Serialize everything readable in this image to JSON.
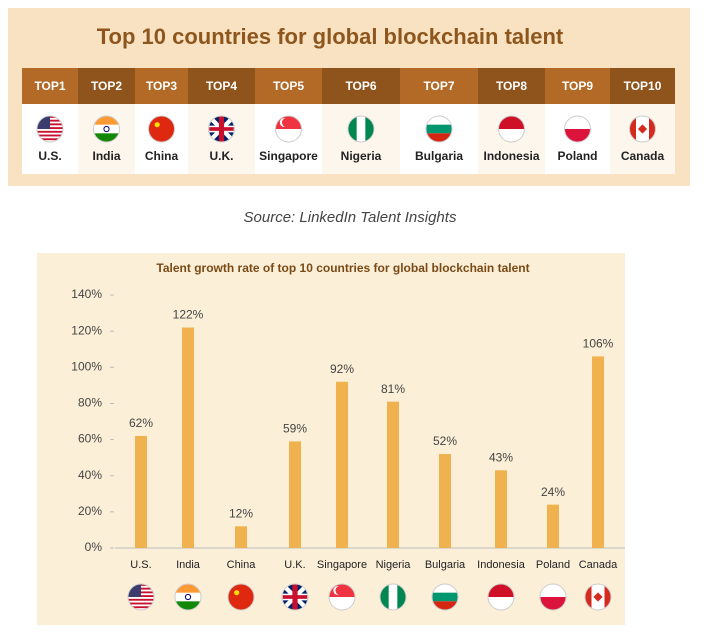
{
  "ranking": {
    "title": "Top 10 countries for global blockchain talent",
    "ranks": [
      "TOP1",
      "TOP2",
      "TOP3",
      "TOP4",
      "TOP5",
      "TOP6",
      "TOP7",
      "TOP8",
      "TOP9",
      "TOP10"
    ],
    "countries": [
      "U.S.",
      "India",
      "China",
      "U.K.",
      "Singapore",
      "Nigeria",
      "Bulgaria",
      "Indonesia",
      "Poland",
      "Canada"
    ]
  },
  "source": "Source: LinkedIn Talent Insights",
  "chart_data": {
    "type": "bar",
    "title": "Talent growth rate of top 10 countries for global blockchain talent",
    "categories": [
      "U.S.",
      "India",
      "China",
      "U.K.",
      "Singapore",
      "Nigeria",
      "Bulgaria",
      "Indonesia",
      "Poland",
      "Canada"
    ],
    "values": [
      62,
      122,
      12,
      59,
      92,
      81,
      52,
      43,
      24,
      106
    ],
    "value_labels": [
      "62%",
      "122%",
      "12%",
      "59%",
      "92%",
      "81%",
      "52%",
      "43%",
      "24%",
      "106%"
    ],
    "color": "#f0b24e",
    "ylim": [
      0,
      140
    ],
    "yticks": [
      {
        "value": 0,
        "label": "0%"
      },
      {
        "value": 20,
        "label": "20%"
      },
      {
        "value": 40,
        "label": "40%"
      },
      {
        "value": 60,
        "label": "60%"
      },
      {
        "value": 80,
        "label": "80%"
      },
      {
        "value": 100,
        "label": "100%"
      },
      {
        "value": 120,
        "label": "120%"
      },
      {
        "value": 140,
        "label": "140%"
      }
    ],
    "grid": false
  }
}
